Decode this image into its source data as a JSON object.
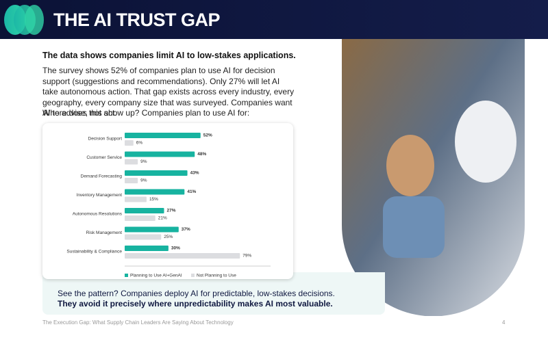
{
  "header": {
    "title": "THE AI TRUST GAP"
  },
  "body": {
    "heading": "The data shows companies limit AI to low-stakes applications.",
    "paragraph": "The survey shows 52% of companies plan to use AI for decision support (suggestions and recommendations). Only 27% will let AI take autonomous action. That gap exists across every industry, every geography, every company size that was surveyed. Companies want AI to advise, not act.",
    "lead_in": "Where does this show up? Companies plan to use AI for:"
  },
  "chart_data": {
    "type": "bar",
    "orientation": "horizontal",
    "categories": [
      "Decision Support",
      "Customer Service",
      "Demand Forecasting",
      "Inventory Management",
      "Autonomous Resolutions",
      "Risk Management",
      "Sustainability & Compliance"
    ],
    "series": [
      {
        "name": "Planning to Use AI+GenAI",
        "color": "#17b3a0",
        "values": [
          52,
          48,
          43,
          41,
          27,
          37,
          30
        ],
        "value_labels": [
          "52%",
          "48%",
          "43%",
          "41%",
          "27%",
          "37%",
          "30%"
        ]
      },
      {
        "name": "Not Planning to Use",
        "color": "#dcdde0",
        "values": [
          6,
          9,
          9,
          15,
          21,
          25,
          79
        ],
        "value_labels": [
          "6%",
          "9%",
          "9%",
          "15%",
          "21%",
          "25%",
          "79%"
        ]
      }
    ],
    "xlim": [
      0,
      100
    ]
  },
  "callout": {
    "text": "See the pattern? Companies deploy AI for predictable, low-stakes decisions.",
    "emphasis": "They avoid it precisely where unpredictability makes AI most valuable."
  },
  "footer": {
    "text": "The Execution Gap: What Supply Chain Leaders Are Saying About Technology",
    "page": "4"
  }
}
